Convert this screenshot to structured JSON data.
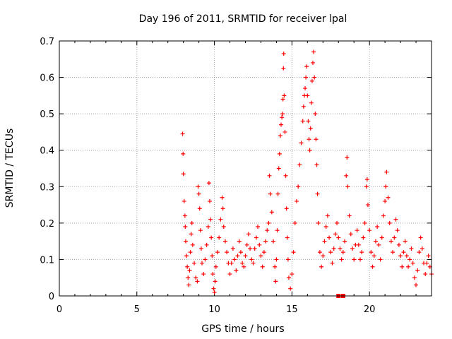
{
  "chart_data": {
    "type": "scatter",
    "title": "Day 196 of 2011, SRMTID for receiver lpal",
    "xlabel": "GPS time / hours",
    "ylabel": "SRMTID / TECUs",
    "xlim": [
      0,
      24
    ],
    "ylim": [
      0,
      0.7
    ],
    "xticks": [
      0,
      5,
      10,
      15,
      20
    ],
    "xtick_labels": [
      "0",
      "5",
      "10",
      "15",
      "20"
    ],
    "yticks": [
      0,
      0.1,
      0.2,
      0.3,
      0.4,
      0.5,
      0.6,
      0.7
    ],
    "ytick_labels": [
      "0",
      "0.1",
      "0.2",
      "0.3",
      "0.4",
      "0.5",
      "0.6",
      "0.7"
    ],
    "grid": true,
    "marker": "plus",
    "marker_color": "#ff0000",
    "gap_marker": "square",
    "series": [
      {
        "name": "SRMTID",
        "points": [
          [
            7.95,
            0.445
          ],
          [
            7.98,
            0.39
          ],
          [
            8.0,
            0.335
          ],
          [
            8.05,
            0.26
          ],
          [
            8.1,
            0.22
          ],
          [
            8.12,
            0.19
          ],
          [
            8.15,
            0.15
          ],
          [
            8.2,
            0.11
          ],
          [
            8.25,
            0.08
          ],
          [
            8.3,
            0.05
          ],
          [
            8.35,
            0.03
          ],
          [
            8.4,
            0.07
          ],
          [
            8.45,
            0.12
          ],
          [
            8.5,
            0.17
          ],
          [
            8.55,
            0.2
          ],
          [
            8.6,
            0.14
          ],
          [
            8.7,
            0.09
          ],
          [
            8.8,
            0.05
          ],
          [
            8.9,
            0.04
          ],
          [
            8.95,
            0.3
          ],
          [
            9.0,
            0.28
          ],
          [
            9.05,
            0.24
          ],
          [
            9.1,
            0.18
          ],
          [
            9.15,
            0.13
          ],
          [
            9.2,
            0.09
          ],
          [
            9.3,
            0.06
          ],
          [
            9.4,
            0.1
          ],
          [
            9.5,
            0.14
          ],
          [
            9.6,
            0.19
          ],
          [
            9.65,
            0.31
          ],
          [
            9.7,
            0.26
          ],
          [
            9.75,
            0.21
          ],
          [
            9.8,
            0.16
          ],
          [
            9.85,
            0.11
          ],
          [
            9.9,
            0.06
          ],
          [
            9.95,
            0.02
          ],
          [
            10.0,
            0.01
          ],
          [
            10.05,
            0.04
          ],
          [
            10.1,
            0.08
          ],
          [
            10.2,
            0.12
          ],
          [
            10.3,
            0.16
          ],
          [
            10.4,
            0.21
          ],
          [
            10.5,
            0.27
          ],
          [
            10.55,
            0.24
          ],
          [
            10.6,
            0.19
          ],
          [
            10.7,
            0.15
          ],
          [
            10.8,
            0.12
          ],
          [
            10.9,
            0.09
          ],
          [
            11.0,
            0.06
          ],
          [
            11.1,
            0.09
          ],
          [
            11.2,
            0.13
          ],
          [
            11.3,
            0.1
          ],
          [
            11.4,
            0.07
          ],
          [
            11.5,
            0.11
          ],
          [
            11.6,
            0.15
          ],
          [
            11.7,
            0.12
          ],
          [
            11.8,
            0.09
          ],
          [
            11.9,
            0.08
          ],
          [
            12.0,
            0.11
          ],
          [
            12.1,
            0.14
          ],
          [
            12.2,
            0.17
          ],
          [
            12.3,
            0.13
          ],
          [
            12.4,
            0.1
          ],
          [
            12.5,
            0.09
          ],
          [
            12.6,
            0.13
          ],
          [
            12.7,
            0.16
          ],
          [
            12.8,
            0.19
          ],
          [
            12.9,
            0.14
          ],
          [
            13.0,
            0.11
          ],
          [
            13.1,
            0.08
          ],
          [
            13.2,
            0.12
          ],
          [
            13.3,
            0.15
          ],
          [
            13.4,
            0.18
          ],
          [
            13.5,
            0.2
          ],
          [
            13.55,
            0.33
          ],
          [
            13.6,
            0.28
          ],
          [
            13.7,
            0.23
          ],
          [
            13.8,
            0.15
          ],
          [
            13.9,
            0.08
          ],
          [
            13.95,
            0.04
          ],
          [
            14.0,
            0.1
          ],
          [
            14.05,
            0.18
          ],
          [
            14.1,
            0.28
          ],
          [
            14.15,
            0.35
          ],
          [
            14.2,
            0.39
          ],
          [
            14.25,
            0.44
          ],
          [
            14.3,
            0.47
          ],
          [
            14.35,
            0.49
          ],
          [
            14.4,
            0.5
          ],
          [
            14.42,
            0.54
          ],
          [
            14.45,
            0.625
          ],
          [
            14.47,
            0.665
          ],
          [
            14.5,
            0.55
          ],
          [
            14.55,
            0.45
          ],
          [
            14.6,
            0.33
          ],
          [
            14.65,
            0.24
          ],
          [
            14.7,
            0.16
          ],
          [
            14.75,
            0.1
          ],
          [
            14.8,
            0.05
          ],
          [
            14.9,
            0.02
          ],
          [
            15.0,
            0.06
          ],
          [
            15.1,
            0.12
          ],
          [
            15.2,
            0.2
          ],
          [
            15.3,
            0.26
          ],
          [
            15.4,
            0.3
          ],
          [
            15.5,
            0.36
          ],
          [
            15.6,
            0.42
          ],
          [
            15.7,
            0.48
          ],
          [
            15.75,
            0.52
          ],
          [
            15.8,
            0.55
          ],
          [
            15.85,
            0.57
          ],
          [
            15.9,
            0.6
          ],
          [
            15.95,
            0.63
          ],
          [
            16.0,
            0.55
          ],
          [
            16.05,
            0.48
          ],
          [
            16.1,
            0.43
          ],
          [
            16.15,
            0.4
          ],
          [
            16.2,
            0.46
          ],
          [
            16.25,
            0.53
          ],
          [
            16.3,
            0.59
          ],
          [
            16.35,
            0.64
          ],
          [
            16.4,
            0.67
          ],
          [
            16.45,
            0.6
          ],
          [
            16.5,
            0.5
          ],
          [
            16.55,
            0.43
          ],
          [
            16.6,
            0.36
          ],
          [
            16.65,
            0.28
          ],
          [
            16.7,
            0.2
          ],
          [
            16.8,
            0.12
          ],
          [
            16.9,
            0.08
          ],
          [
            17.0,
            0.11
          ],
          [
            17.1,
            0.15
          ],
          [
            17.2,
            0.19
          ],
          [
            17.3,
            0.22
          ],
          [
            17.4,
            0.16
          ],
          [
            17.5,
            0.12
          ],
          [
            17.6,
            0.09
          ],
          [
            17.7,
            0.13
          ],
          [
            17.8,
            0.17
          ],
          [
            17.9,
            0.2
          ],
          [
            18.0,
            0.16
          ],
          [
            18.1,
            0.13
          ],
          [
            18.2,
            0.1
          ],
          [
            18.3,
            0.12
          ],
          [
            18.4,
            0.15
          ],
          [
            18.5,
            0.33
          ],
          [
            18.55,
            0.38
          ],
          [
            18.6,
            0.3
          ],
          [
            18.7,
            0.22
          ],
          [
            18.8,
            0.17
          ],
          [
            18.9,
            0.13
          ],
          [
            19.0,
            0.1
          ],
          [
            19.1,
            0.14
          ],
          [
            19.2,
            0.18
          ],
          [
            19.3,
            0.14
          ],
          [
            19.4,
            0.1
          ],
          [
            19.5,
            0.12
          ],
          [
            19.6,
            0.16
          ],
          [
            19.7,
            0.2
          ],
          [
            19.8,
            0.3
          ],
          [
            19.85,
            0.32
          ],
          [
            19.9,
            0.25
          ],
          [
            20.0,
            0.18
          ],
          [
            20.1,
            0.12
          ],
          [
            20.2,
            0.08
          ],
          [
            20.3,
            0.11
          ],
          [
            20.4,
            0.15
          ],
          [
            20.5,
            0.19
          ],
          [
            20.6,
            0.14
          ],
          [
            20.7,
            0.1
          ],
          [
            20.8,
            0.16
          ],
          [
            20.9,
            0.22
          ],
          [
            21.0,
            0.26
          ],
          [
            21.05,
            0.3
          ],
          [
            21.1,
            0.34
          ],
          [
            21.2,
            0.27
          ],
          [
            21.3,
            0.2
          ],
          [
            21.4,
            0.15
          ],
          [
            21.5,
            0.12
          ],
          [
            21.6,
            0.16
          ],
          [
            21.7,
            0.21
          ],
          [
            21.8,
            0.18
          ],
          [
            21.9,
            0.14
          ],
          [
            22.0,
            0.11
          ],
          [
            22.1,
            0.08
          ],
          [
            22.2,
            0.12
          ],
          [
            22.3,
            0.15
          ],
          [
            22.4,
            0.11
          ],
          [
            22.5,
            0.08
          ],
          [
            22.6,
            0.1
          ],
          [
            22.7,
            0.13
          ],
          [
            22.8,
            0.09
          ],
          [
            22.9,
            0.05
          ],
          [
            23.0,
            0.03
          ],
          [
            23.1,
            0.07
          ],
          [
            23.2,
            0.12
          ],
          [
            23.3,
            0.16
          ],
          [
            23.4,
            0.13
          ],
          [
            23.5,
            0.09
          ],
          [
            23.6,
            0.06
          ],
          [
            23.7,
            0.09
          ],
          [
            23.8,
            0.11
          ],
          [
            23.9,
            0.08
          ],
          [
            24.0,
            0.06
          ]
        ]
      }
    ],
    "gap_points": [
      [
        18.0,
        0.0
      ],
      [
        18.3,
        0.0
      ]
    ]
  }
}
